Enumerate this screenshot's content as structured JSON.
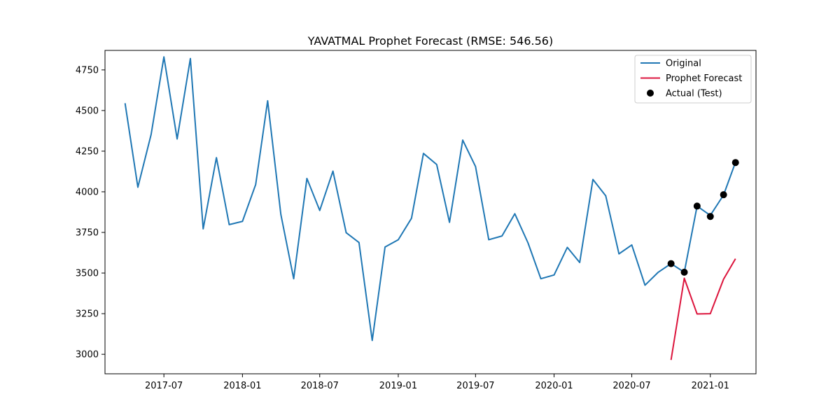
{
  "chart_data": {
    "type": "line",
    "title": "YAVATMAL Prophet Forecast (RMSE: 546.56)",
    "xlabel": "",
    "ylabel": "",
    "x_ticks": [
      "2017-07",
      "2018-01",
      "2018-07",
      "2019-01",
      "2019-07",
      "2020-01",
      "2020-07",
      "2021-01"
    ],
    "y_ticks": [
      3000,
      3250,
      3500,
      3750,
      4000,
      4250,
      4500,
      4750
    ],
    "xlim": [
      "2017-02-13",
      "2021-04-18"
    ],
    "ylim": [
      2880,
      4870
    ],
    "legend_position": "top-right",
    "grid": false,
    "series": [
      {
        "name": "Original",
        "kind": "line",
        "color": "#1f77b4",
        "x": [
          "2017-04",
          "2017-05",
          "2017-06",
          "2017-07",
          "2017-08",
          "2017-09",
          "2017-10",
          "2017-11",
          "2017-12",
          "2018-01",
          "2018-02",
          "2018-03",
          "2018-04",
          "2018-05",
          "2018-06",
          "2018-07",
          "2018-08",
          "2018-09",
          "2018-10",
          "2018-11",
          "2018-12",
          "2019-01",
          "2019-02",
          "2019-03",
          "2019-04",
          "2019-05",
          "2019-06",
          "2019-07",
          "2019-08",
          "2019-09",
          "2019-10",
          "2019-11",
          "2019-12",
          "2020-01",
          "2020-02",
          "2020-03",
          "2020-04",
          "2020-05",
          "2020-06",
          "2020-07",
          "2020-08",
          "2020-09",
          "2020-10",
          "2020-11",
          "2020-12",
          "2021-01",
          "2021-02",
          "2021-03"
        ],
        "y": [
          4545,
          4028,
          4352,
          4830,
          4325,
          4820,
          3772,
          4210,
          3798,
          3818,
          4045,
          4560,
          3860,
          3465,
          4082,
          3885,
          4127,
          3748,
          3688,
          3085,
          3660,
          3705,
          3837,
          4236,
          4168,
          3812,
          4318,
          4155,
          3705,
          3728,
          3865,
          3685,
          3465,
          3488,
          3658,
          3565,
          4076,
          3975,
          3618,
          3673,
          3425,
          3505,
          3558,
          3505,
          3912,
          3855,
          3980,
          4182
        ]
      },
      {
        "name": "Prophet Forecast",
        "kind": "line",
        "color": "#dc143c",
        "x": [
          "2020-10",
          "2020-11",
          "2020-12",
          "2021-01",
          "2021-02",
          "2021-03"
        ],
        "y": [
          2965,
          3468,
          3248,
          3250,
          3462,
          3588
        ]
      },
      {
        "name": "Actual (Test)",
        "kind": "scatter",
        "color": "#000000",
        "x": [
          "2020-10",
          "2020-11",
          "2020-12",
          "2021-01",
          "2021-02",
          "2021-03"
        ],
        "y": [
          3558,
          3505,
          3912,
          3848,
          3982,
          4180
        ]
      }
    ]
  }
}
